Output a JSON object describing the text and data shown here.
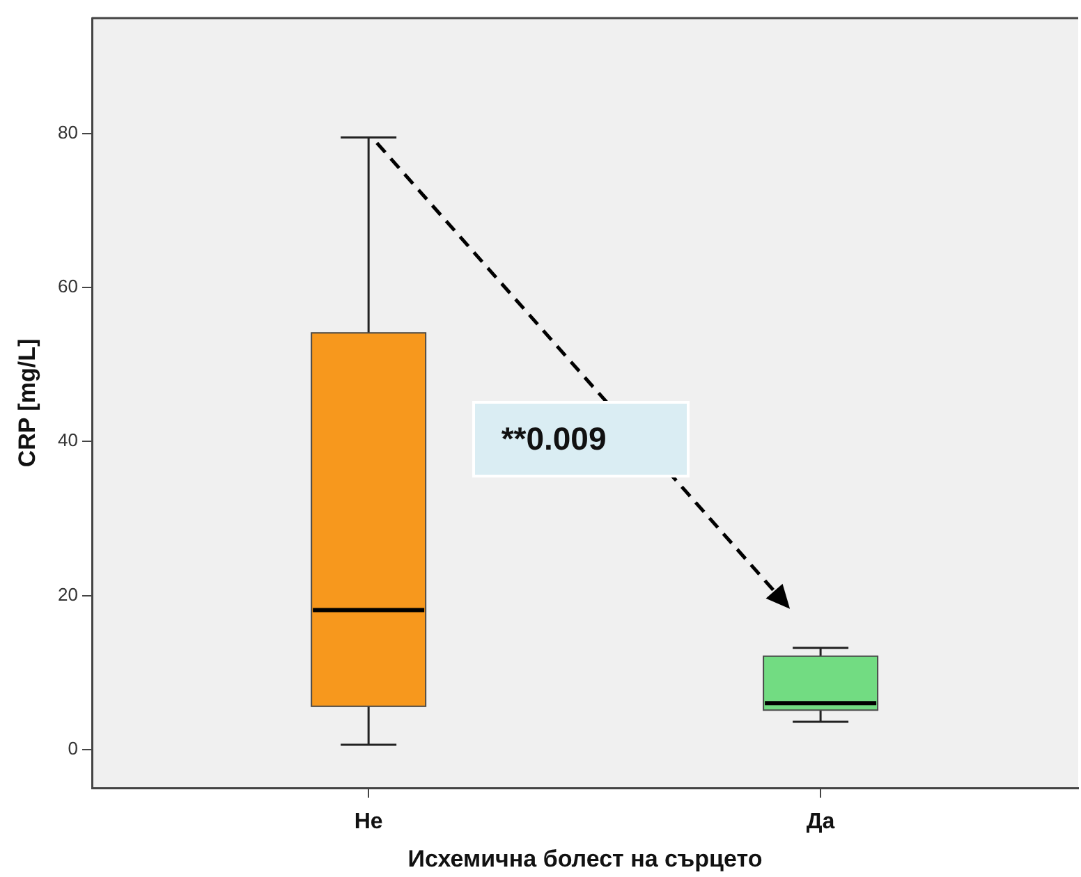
{
  "chart_data": {
    "type": "box",
    "xlabel": "Исхемична болест на сърцето",
    "ylabel": "CRP [mg/L]",
    "categories": [
      "Не",
      "Да"
    ],
    "colors": [
      "#f7981d",
      "#72dc82"
    ],
    "boxes": [
      {
        "low": 0.6,
        "q1": 5.6,
        "median": 18.1,
        "q3": 54.1,
        "high": 79.5
      },
      {
        "low": 3.6,
        "q1": 5.1,
        "median": 6.0,
        "q3": 12.1,
        "high": 13.2
      }
    ],
    "ylim": [
      -5,
      95
    ],
    "yticks": [
      0,
      20,
      40,
      60,
      80
    ],
    "annotations": [
      "**0.009"
    ]
  }
}
